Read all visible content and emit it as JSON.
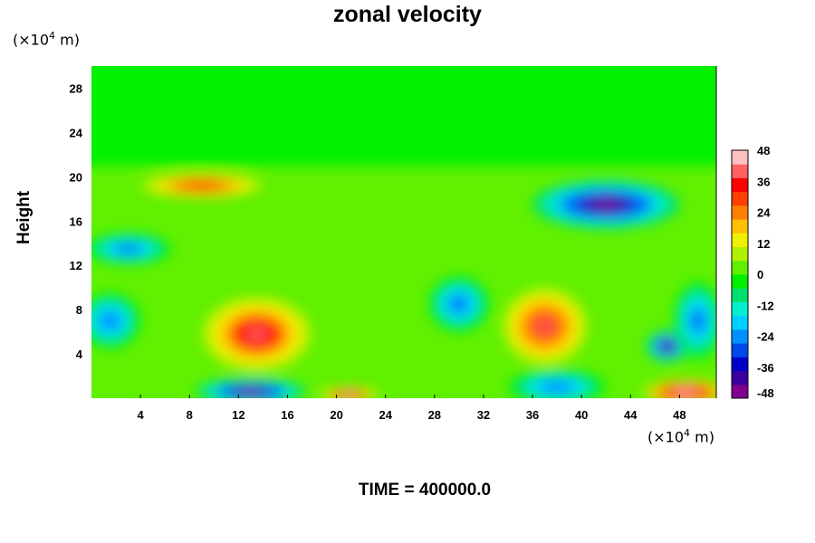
{
  "chart_data": {
    "type": "heatmap",
    "title": "zonal velocity",
    "ylabel": "Height",
    "y_unit": {
      "prefix": "(×10",
      "exp": "4",
      "suffix": " m)"
    },
    "x_unit": {
      "prefix": "(×10",
      "exp": "4",
      "suffix": " m)"
    },
    "xlim": [
      0,
      51
    ],
    "ylim": [
      0,
      30
    ],
    "x_ticks": [
      4,
      8,
      12,
      16,
      20,
      24,
      28,
      32,
      36,
      40,
      44,
      48
    ],
    "y_ticks": [
      4,
      8,
      12,
      16,
      20,
      24,
      28
    ],
    "colorbar": {
      "range": [
        -48,
        48
      ],
      "ticks": [
        48,
        36,
        24,
        12,
        0,
        -12,
        -24,
        -36,
        -48
      ],
      "colors": [
        "#800090",
        "#3a00a0",
        "#0000c8",
        "#0048e8",
        "#0090ff",
        "#00d0ff",
        "#00f0d0",
        "#00e070",
        "#00f000",
        "#60f000",
        "#b0f000",
        "#f0f000",
        "#ffc000",
        "#ff8000",
        "#ff4000",
        "#ff0000",
        "#ff6060",
        "#ffc0c0"
      ]
    },
    "background_value": 0,
    "features": [
      {
        "x": 13.5,
        "y": 5.8,
        "rx": 4.5,
        "ry": 3.4,
        "value": 40
      },
      {
        "x": 37,
        "y": 6.5,
        "rx": 3.5,
        "ry": 3.5,
        "value": 38
      },
      {
        "x": 9,
        "y": 19.2,
        "rx": 5,
        "ry": 1.1,
        "value": 34
      },
      {
        "x": 42,
        "y": 17.5,
        "rx": 6,
        "ry": 2.2,
        "value": -48
      },
      {
        "x": 47,
        "y": 4.7,
        "rx": 1.7,
        "ry": 1.4,
        "value": -46
      },
      {
        "x": 13,
        "y": 0.6,
        "rx": 4.5,
        "ry": 1.2,
        "value": -46
      },
      {
        "x": 48.5,
        "y": 0.5,
        "rx": 3.5,
        "ry": 1.2,
        "value": 48
      },
      {
        "x": 21,
        "y": 0.3,
        "rx": 2.5,
        "ry": 0.7,
        "value": 44
      },
      {
        "x": 30,
        "y": 8.5,
        "rx": 2.5,
        "ry": 2.5,
        "value": -28
      },
      {
        "x": 3,
        "y": 13.5,
        "rx": 3.5,
        "ry": 1.4,
        "value": -30
      },
      {
        "x": 1.5,
        "y": 7,
        "rx": 2.5,
        "ry": 2.5,
        "value": -26
      },
      {
        "x": 49.5,
        "y": 7,
        "rx": 2,
        "ry": 3.5,
        "value": -30
      },
      {
        "x": 38,
        "y": 1,
        "rx": 4,
        "ry": 1.6,
        "value": -26
      }
    ],
    "upper_layer": {
      "y_from": 21,
      "y_to": 30,
      "value": -2
    }
  },
  "time_label": "TIME = 400000.0"
}
